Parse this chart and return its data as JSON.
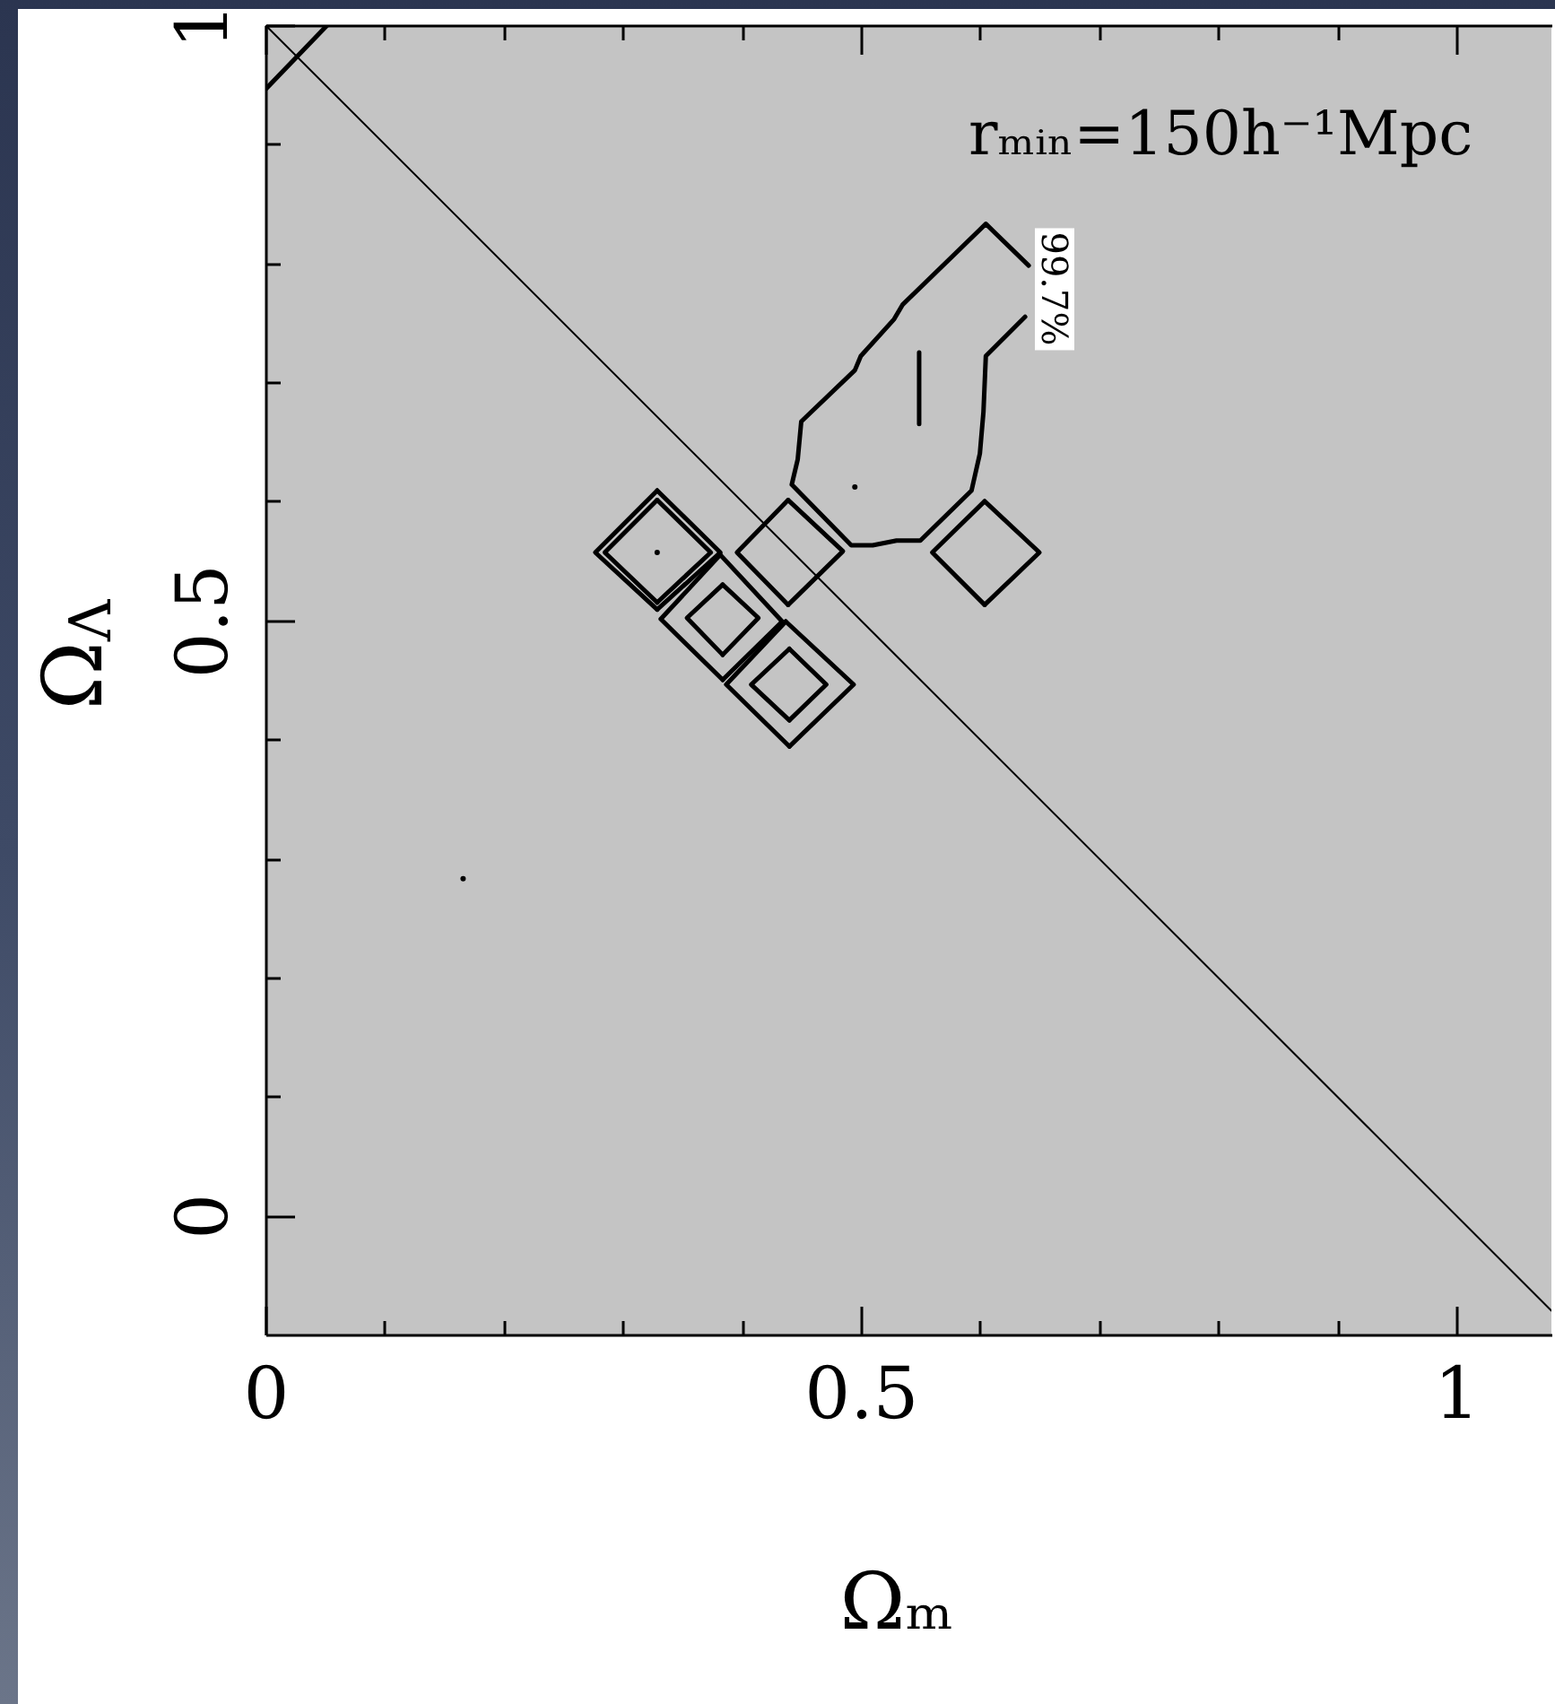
{
  "chart_data": {
    "type": "line",
    "xlabel": "Ωₘ",
    "ylabel": "Ω$_{Λ}$",
    "annotations": [
      "rₘᵢₙ=150h⁻¹Mpc",
      "99.7%"
    ],
    "xlim": [
      0,
      1.08
    ],
    "ylim": [
      -0.1,
      1
    ],
    "xticks": [
      0,
      {
        "value": 0.1,
        "label": null
      },
      {
        "value": 0.2,
        "label": null
      },
      {
        "value": 0.3,
        "label": null
      },
      {
        "value": 0.4,
        "label": null
      },
      0.5,
      {
        "value": 0.6,
        "label": null
      },
      {
        "value": 0.7,
        "label": null
      },
      {
        "value": 0.8,
        "label": null
      },
      {
        "value": 0.9,
        "label": null
      },
      1
    ],
    "yticks": [
      0,
      {
        "value": 0.1,
        "label": null
      },
      {
        "value": 0.2,
        "label": null
      },
      {
        "value": 0.3,
        "label": null
      },
      {
        "value": 0.4,
        "label": null
      },
      0.5,
      {
        "value": 0.6,
        "label": null
      },
      {
        "value": 0.7,
        "label": null
      },
      {
        "value": 0.8,
        "label": null
      },
      {
        "value": 0.9,
        "label": null
      },
      1
    ],
    "series": [
      {
        "color": "#000000",
        "x": [
          0,
          1.08
        ],
        "values": [
          1,
          -0.08
        ]
      },
      {
        "color": "#000000",
        "x": [
          0,
          0.052
        ],
        "values": [
          0.946,
          1
        ]
      },
      {
        "color": "#000000",
        "x": [
          0.638,
          0.605,
          0.603,
          0.6,
          0.593,
          0.55,
          0.53,
          0.51,
          0.492,
          0.442,
          0.447,
          0.45,
          0.495,
          0.5,
          0.528,
          0.535,
          0.605,
          0.641
        ],
        "values": [
          0.755,
          0.722,
          0.675,
          0.64,
          0.609,
          0.567,
          0.567,
          0.563,
          0.563,
          0.614,
          0.635,
          0.667,
          0.71,
          0.722,
          0.753,
          0.765,
          0.833,
          0.798
        ]
      },
      {
        "color": "#000000",
        "x": [
          0.604,
          0.65,
          0.604
        ],
        "values": [
          0.6,
          0.557,
          0.513
        ]
      },
      {
        "color": "#000000",
        "x": [
          0.604,
          0.56,
          0.604
        ],
        "values": [
          0.513,
          0.557,
          0.6
        ]
      },
      {
        "color": "#000000",
        "x": [
          0.439,
          0.485,
          0.439
        ],
        "values": [
          0.601,
          0.558,
          0.513
        ]
      },
      {
        "color": "#000000",
        "x": [
          0.439,
          0.396,
          0.439
        ],
        "values": [
          0.513,
          0.557,
          0.601
        ]
      },
      {
        "color": "#000000",
        "x": [
          0.329,
          0.382,
          0.329
        ],
        "values": [
          0.609,
          0.557,
          0.509
        ]
      },
      {
        "color": "#000000",
        "x": [
          0.329,
          0.277,
          0.329
        ],
        "values": [
          0.509,
          0.557,
          0.609
        ]
      },
      {
        "color": "#000000",
        "x": [
          0.329,
          0.374,
          0.329
        ],
        "values": [
          0.601,
          0.557,
          0.515
        ]
      },
      {
        "color": "#000000",
        "x": [
          0.329,
          0.285,
          0.329
        ],
        "values": [
          0.515,
          0.557,
          0.601
        ]
      },
      {
        "color": "#000000",
        "x": [
          0.382,
          0.434,
          0.384
        ],
        "values": [
          0.555,
          0.499,
          0.45
        ]
      },
      {
        "color": "#000000",
        "x": [
          0.384,
          0.332,
          0.382
        ],
        "values": [
          0.45,
          0.501,
          0.555
        ]
      },
      {
        "color": "#000000",
        "x": [
          0.384,
          0.414,
          0.384
        ],
        "values": [
          0.53,
          0.502,
          0.471
        ]
      },
      {
        "color": "#000000",
        "x": [
          0.384,
          0.354,
          0.384
        ],
        "values": [
          0.471,
          0.502,
          0.53
        ]
      },
      {
        "color": "#000000",
        "x": [
          0.437,
          0.494,
          0.44
        ],
        "values": [
          0.499,
          0.446,
          0.394
        ]
      },
      {
        "color": "#000000",
        "x": [
          0.44,
          0.387,
          0.437
        ],
        "values": [
          0.394,
          0.446,
          0.499
        ]
      },
      {
        "color": "#000000",
        "x": [
          0.44,
          0.471,
          0.44
        ],
        "values": [
          0.476,
          0.446,
          0.416
        ]
      },
      {
        "color": "#000000",
        "x": [
          0.44,
          0.408,
          0.44
        ],
        "values": [
          0.416,
          0.446,
          0.476
        ]
      },
      {
        "color": "#000000",
        "x": [
          0.549,
          0.549
        ],
        "values": [
          0.725,
          0.665
        ]
      },
      {
        "type": "scatter",
        "color": "#000000",
        "x": [
          0.166,
          0.329,
          0.495
        ],
        "values": [
          0.283,
          0.557,
          0.612
        ]
      }
    ]
  }
}
